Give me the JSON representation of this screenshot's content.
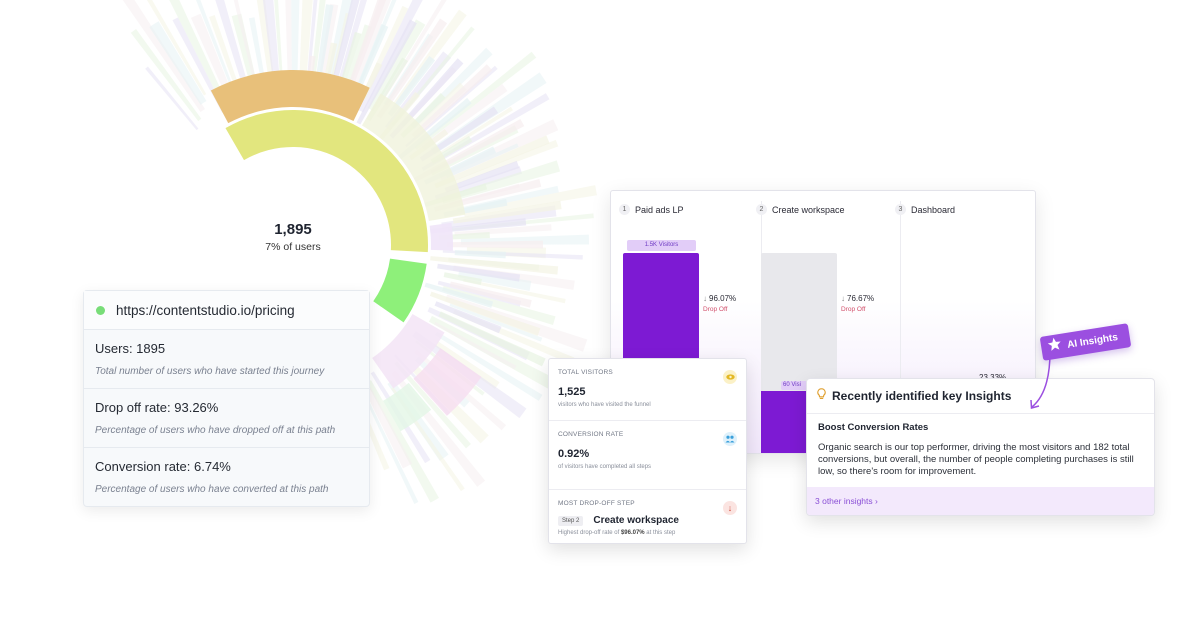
{
  "journey_chart": {
    "center_value": "1,895",
    "center_caption": "7% of users"
  },
  "journey_tooltip": {
    "url": "https://contentstudio.io/pricing",
    "rows": [
      {
        "title": "Users: 1895",
        "description": "Total number of users who have started this journey"
      },
      {
        "title": "Drop off rate: 93.26%",
        "description": "Percentage of users who have dropped off at this path"
      },
      {
        "title": "Conversion rate: 6.74%",
        "description": "Percentage of users who have converted at this path"
      }
    ],
    "dot_color": "#78dd78"
  },
  "funnel": {
    "steps": [
      {
        "number": "1",
        "name": "Paid ads LP"
      },
      {
        "number": "2",
        "name": "Create workspace"
      },
      {
        "number": "3",
        "name": "Dashboard"
      }
    ],
    "visitor_pill": "1.5K Visitors",
    "visitor_pill_2": "60 Visi",
    "drop_offs": [
      {
        "value": "96.07%",
        "label": "Drop Off"
      },
      {
        "value": "76.67%",
        "label": "Drop Off"
      }
    ],
    "third_pct_partial": "23.33%",
    "bar_color": "#7d1ad3"
  },
  "stats": {
    "total_visitors": {
      "label": "TOTAL VISITORS",
      "value": "1,525",
      "description": "visitors who have visited the funnel"
    },
    "conversion_rate": {
      "label": "CONVERSION RATE",
      "value": "0.92%",
      "description": "of visitors have completed all steps"
    },
    "most_dropoff": {
      "label": "MOST DROP-OFF STEP",
      "step_badge": "Step 2",
      "step_name": "Create workspace",
      "description_prefix": "Highest drop-off rate of ",
      "description_value": "$96.07%",
      "description_suffix": " at this step"
    }
  },
  "insights": {
    "title": "Recently identified key Insights",
    "subtitle": "Boost Conversion Rates",
    "text": "Organic search is our top performer, driving the most visitors and 182 total conversions, but overall, the number of people completing purchases is still low, so there's room for improvement.",
    "link": "3 other insights",
    "link_icon": "chevron-right-icon",
    "title_icon": "lightbulb-icon"
  },
  "ai_badge": {
    "label": "AI Insights",
    "icon": "star-icon",
    "color": "#9b4fe0"
  }
}
